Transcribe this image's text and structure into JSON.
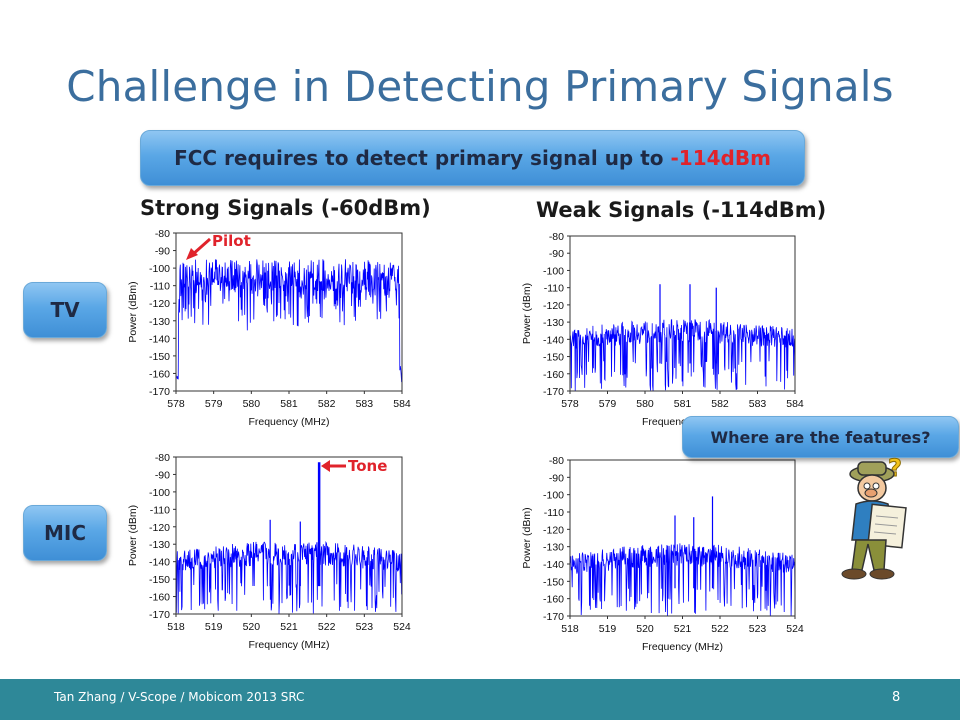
{
  "slide": {
    "title": "Challenge in Detecting Primary Signals",
    "fcc_prefix": "FCC requires to detect primary signal up to ",
    "fcc_highlight": "-114dBm",
    "col_strong": "Strong Signals (-60dBm)",
    "col_weak": "Weak Signals (-114dBm)",
    "row_tv": "TV",
    "row_mic": "MIC",
    "annot_pilot": "Pilot",
    "annot_tone": "Tone",
    "question": "Where are the features?",
    "cartoon_mark": "?",
    "footer": "Tan Zhang / V-Scope / Mobicom 2013 SRC",
    "page_number": "8",
    "accent_color": "#3b6e9e",
    "trace_color": "#0000ff",
    "highlight_color": "#e0232b"
  },
  "chart_data": [
    {
      "id": "tv-strong",
      "type": "line",
      "xlabel": "Frequency (MHz)",
      "ylabel": "Power (dBm)",
      "x": [
        578,
        579,
        580,
        581,
        582,
        583,
        584
      ],
      "xticks": [
        "578",
        "579",
        "580",
        "581",
        "582",
        "583",
        "584"
      ],
      "yticks": [
        "-80",
        "-90",
        "-100",
        "-110",
        "-120",
        "-130",
        "-140",
        "-150",
        "-160",
        "-170"
      ],
      "xlim": [
        578,
        584
      ],
      "ylim": [
        -170,
        -80
      ],
      "series": [
        {
          "values": {
            "upper": -100,
            "lower": -135,
            "noise_floor": -160
          }
        }
      ],
      "annotation": "Pilot"
    },
    {
      "id": "tv-weak",
      "type": "line",
      "xlabel": "Frequency (MHz)",
      "ylabel": "Power (dBm)",
      "x": [
        578,
        579,
        580,
        581,
        582,
        583,
        584
      ],
      "xticks": [
        "578",
        "579",
        "580",
        "581",
        "582",
        "583",
        "584"
      ],
      "yticks": [
        "-80",
        "-90",
        "-100",
        "-110",
        "-120",
        "-130",
        "-140",
        "-150",
        "-160",
        "-170"
      ],
      "xlim": [
        578,
        584
      ],
      "ylim": [
        -170,
        -80
      ],
      "series": [
        {
          "values": {
            "upper": -128,
            "lower": -142,
            "peaks": [
              [
                580.4,
                -108
              ],
              [
                581.2,
                -108
              ],
              [
                581.9,
                -110
              ]
            ]
          }
        }
      ]
    },
    {
      "id": "mic-strong",
      "type": "line",
      "xlabel": "Frequency (MHz)",
      "ylabel": "Power (dBm)",
      "x": [
        518,
        519,
        520,
        521,
        522,
        523,
        524
      ],
      "xticks": [
        "518",
        "519",
        "520",
        "521",
        "522",
        "523",
        "524"
      ],
      "yticks": [
        "-80",
        "-90",
        "-100",
        "-110",
        "-120",
        "-130",
        "-140",
        "-150",
        "-160",
        "-170"
      ],
      "xlim": [
        518,
        524
      ],
      "ylim": [
        -170,
        -80
      ],
      "series": [
        {
          "values": {
            "upper": -128,
            "lower": -142,
            "tone": [
              521.8,
              -83
            ],
            "peaks": [
              [
                520.5,
                -116
              ],
              [
                521.3,
                -117
              ]
            ]
          }
        }
      ],
      "annotation": "Tone"
    },
    {
      "id": "mic-weak",
      "type": "line",
      "xlabel": "Frequency (MHz)",
      "ylabel": "Power (dBm)",
      "x": [
        518,
        519,
        520,
        521,
        522,
        523,
        524
      ],
      "xticks": [
        "518",
        "519",
        "520",
        "521",
        "522",
        "523",
        "524"
      ],
      "yticks": [
        "-80",
        "-90",
        "-100",
        "-110",
        "-120",
        "-130",
        "-140",
        "-150",
        "-160",
        "-170"
      ],
      "xlim": [
        518,
        524
      ],
      "ylim": [
        -170,
        -80
      ],
      "series": [
        {
          "values": {
            "upper": -128,
            "lower": -142,
            "peaks": [
              [
                520.8,
                -112
              ],
              [
                521.3,
                -113
              ],
              [
                521.8,
                -101
              ]
            ]
          }
        }
      ]
    }
  ]
}
